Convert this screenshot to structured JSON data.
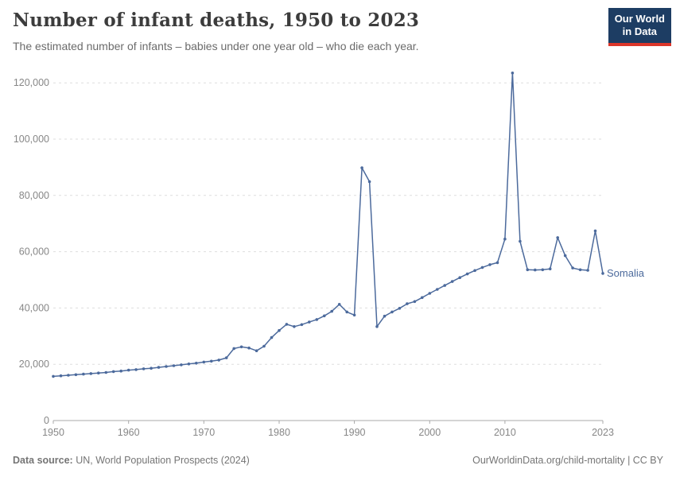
{
  "header": {
    "title": "Number of infant deaths, 1950 to 2023",
    "subtitle": "The estimated number of infants – babies under one year old – who die each year.",
    "logo": {
      "line1": "Our World",
      "line2": "in Data"
    }
  },
  "footer": {
    "source_label": "Data source:",
    "source_text": " UN, World Population Prospects (2024)",
    "credit": "OurWorldinData.org/child-mortality | CC BY"
  },
  "colors": {
    "series_blue": "#4c6a9c",
    "grid_gray": "#dedede",
    "axis_gray": "#a8a8a8",
    "tick_text_gray": "#878787",
    "logo_navy": "#1d3d63",
    "logo_red": "#dc362a"
  },
  "chart_data": {
    "type": "line",
    "title": "Number of infant deaths, 1950 to 2023",
    "xlabel": "",
    "ylabel": "",
    "grid": "horizontal-dashed",
    "legend_position": "end-of-line-label",
    "xlim": [
      1950,
      2023
    ],
    "ylim": [
      0,
      120000
    ],
    "x_ticks": [
      1950,
      1960,
      1970,
      1980,
      1990,
      2000,
      2010,
      2023
    ],
    "y_ticks": [
      0,
      20000,
      40000,
      60000,
      80000,
      100000,
      120000
    ],
    "y_tick_labels": [
      "0",
      "20,000",
      "40,000",
      "60,000",
      "80,000",
      "100,000",
      "120,000"
    ],
    "series": [
      {
        "name": "Somalia",
        "color": "#4c6a9c",
        "x": [
          1950,
          1951,
          1952,
          1953,
          1954,
          1955,
          1956,
          1957,
          1958,
          1959,
          1960,
          1961,
          1962,
          1963,
          1964,
          1965,
          1966,
          1967,
          1968,
          1969,
          1970,
          1971,
          1972,
          1973,
          1974,
          1975,
          1976,
          1977,
          1978,
          1979,
          1980,
          1981,
          1982,
          1983,
          1984,
          1985,
          1986,
          1987,
          1988,
          1989,
          1990,
          1991,
          1992,
          1993,
          1994,
          1995,
          1996,
          1997,
          1998,
          1999,
          2000,
          2001,
          2002,
          2003,
          2004,
          2005,
          2006,
          2007,
          2008,
          2009,
          2010,
          2011,
          2012,
          2013,
          2014,
          2015,
          2016,
          2017,
          2018,
          2019,
          2020,
          2021,
          2022,
          2023
        ],
        "values": [
          15700,
          15900,
          16100,
          16300,
          16500,
          16700,
          16900,
          17100,
          17400,
          17600,
          17900,
          18100,
          18400,
          18600,
          18900,
          19200,
          19500,
          19800,
          20100,
          20400,
          20800,
          21100,
          21500,
          22300,
          25600,
          26200,
          25800,
          24800,
          26400,
          29500,
          32000,
          34200,
          33400,
          34100,
          35000,
          35900,
          37200,
          38800,
          41300,
          38600,
          37500,
          89800,
          84900,
          33400,
          37100,
          38600,
          39900,
          41500,
          42300,
          43700,
          45200,
          46600,
          48000,
          49400,
          50800,
          52100,
          53300,
          54400,
          55400,
          56100,
          64500,
          123500,
          63700,
          53600,
          53500,
          53600,
          53900,
          65000,
          58600,
          54200,
          53600,
          53400,
          67400,
          52300
        ]
      }
    ]
  }
}
